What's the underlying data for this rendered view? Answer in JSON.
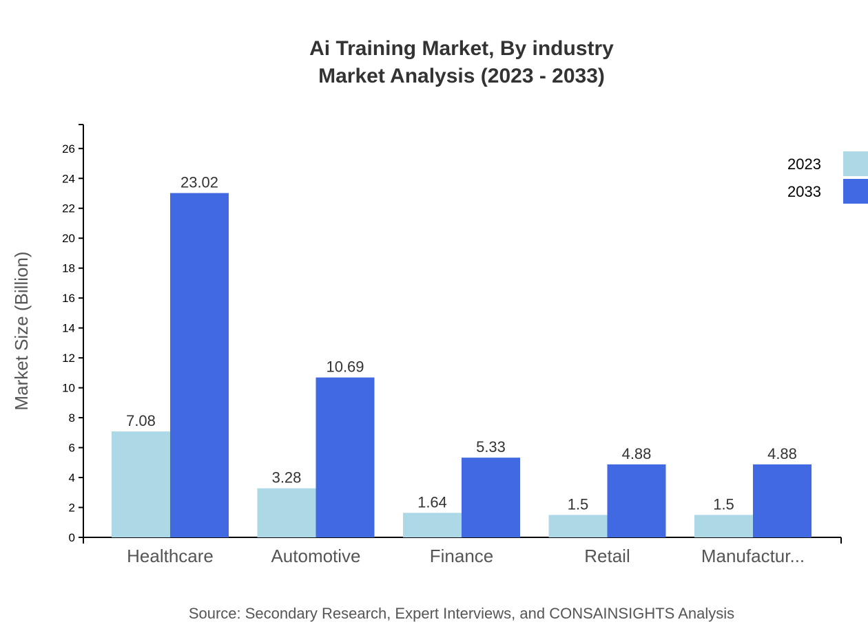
{
  "chart_data": {
    "type": "bar",
    "title": "Ai Training Market, By industry",
    "subtitle": "Market Analysis (2023 - 2033)",
    "xlabel": "",
    "ylabel": "Market Size (Billion)",
    "ylim": [
      0,
      27.6
    ],
    "yticks": [
      0,
      2,
      4,
      6,
      8,
      10,
      12,
      14,
      16,
      18,
      20,
      22,
      24,
      26
    ],
    "categories": [
      "Healthcare",
      "Automotive",
      "Finance",
      "Retail",
      "Manufactur..."
    ],
    "series": [
      {
        "name": "2023",
        "color": "#ADD8E6",
        "values": [
          7.08,
          3.28,
          1.64,
          1.5,
          1.5
        ]
      },
      {
        "name": "2033",
        "color": "#4169E1",
        "values": [
          23.02,
          10.69,
          5.33,
          4.88,
          4.88
        ]
      }
    ],
    "legend_position": "top-right",
    "grid": false,
    "source": "Source: Secondary Research, Expert Interviews, and CONSAINSIGHTS Analysis"
  }
}
